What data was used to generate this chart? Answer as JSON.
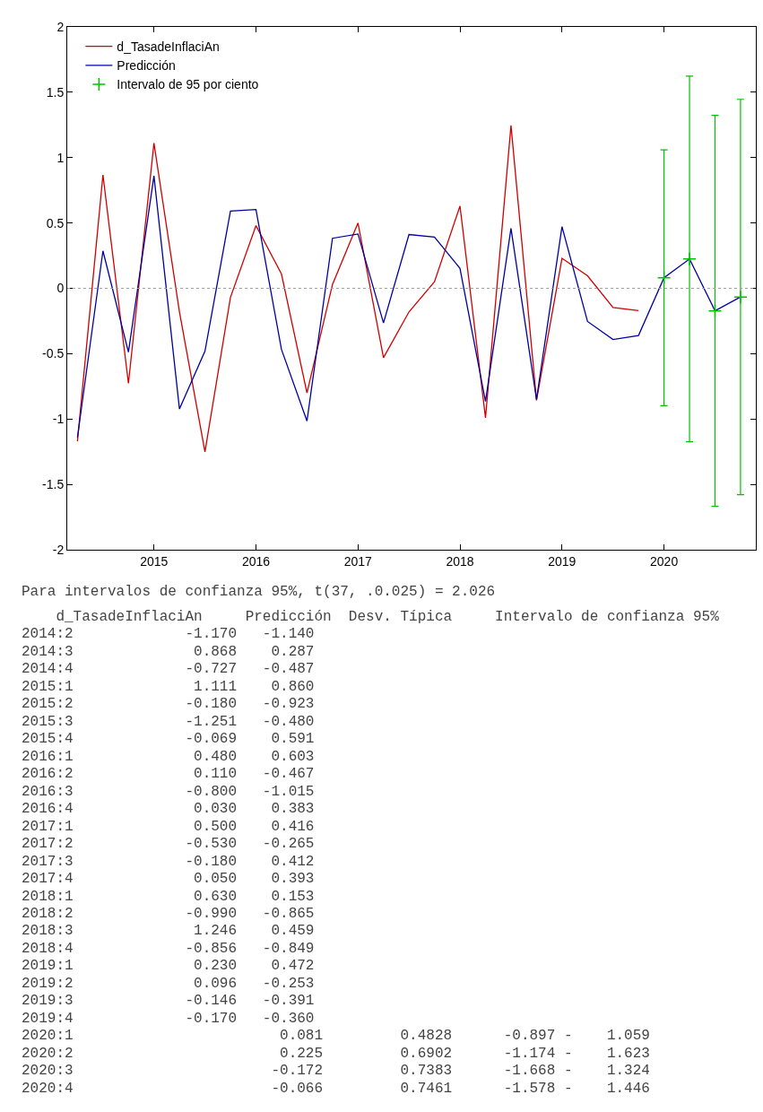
{
  "chart_data": {
    "type": "line",
    "x": [
      2014.25,
      2014.5,
      2014.75,
      2015,
      2015.25,
      2015.5,
      2015.75,
      2016,
      2016.25,
      2016.5,
      2016.75,
      2017,
      2017.25,
      2017.5,
      2017.75,
      2018,
      2018.25,
      2018.5,
      2018.75,
      2019,
      2019.25,
      2019.5,
      2019.75,
      2020,
      2020.25,
      2020.5,
      2020.75
    ],
    "series": [
      {
        "name": "d_TasadeInflaciAn",
        "color": "#d00000",
        "values": [
          -1.17,
          0.868,
          -0.727,
          1.111,
          -0.18,
          -1.251,
          -0.069,
          0.48,
          0.11,
          -0.8,
          0.03,
          0.5,
          -0.53,
          -0.18,
          0.05,
          0.63,
          -0.99,
          1.246,
          -0.856,
          0.23,
          0.096,
          -0.146,
          -0.17,
          null,
          null,
          null,
          null
        ]
      },
      {
        "name": "Predicción",
        "color": "#0000a0",
        "values": [
          -1.14,
          0.287,
          -0.487,
          0.86,
          -0.923,
          -0.48,
          0.591,
          0.603,
          -0.467,
          -1.015,
          0.383,
          0.416,
          -0.265,
          0.412,
          0.393,
          0.153,
          -0.865,
          0.459,
          -0.849,
          0.472,
          -0.253,
          -0.391,
          -0.36,
          0.081,
          0.225,
          -0.172,
          -0.066
        ]
      },
      {
        "name": "Intervalo de 95 por ciento",
        "type": "scatter",
        "color": "#00c000",
        "marker": "cross",
        "x": [
          2020,
          2020.25,
          2020.5,
          2020.75
        ],
        "values": [
          0.081,
          0.225,
          -0.172,
          -0.066
        ],
        "errors": [
          [
            -0.897,
            1.059
          ],
          [
            -1.174,
            1.623
          ],
          [
            -1.668,
            1.324
          ],
          [
            -1.578,
            1.446
          ]
        ]
      }
    ],
    "xlim": [
      2014.15,
      2020.9
    ],
    "xticks": [
      2015,
      2016,
      2017,
      2018,
      2019,
      2020
    ],
    "ylim": [
      -2,
      2
    ],
    "yticks": [
      -2,
      -1.5,
      -1,
      -0.5,
      0,
      0.5,
      1,
      1.5,
      2
    ],
    "legend": "top left",
    "marker": "none",
    "line_style": "solid",
    "ref_lines": [
      {
        "axis": "y",
        "value": 0,
        "color": "#a0a0a0",
        "line_style": "dotted"
      }
    ],
    "annotations": [
      "Para intervalos de confianza 95%, t(37, .0.025) = 2.026",
      "    d_TasadeInflaciAn     Predicción  Desv. Típica     Intervalo de confianza 95%",
      "2014:2             -1.170   -1.140",
      "2014:3              0.868    0.287",
      "2014:4             -0.727   -0.487",
      "2015:1              1.111    0.860",
      "2015:2             -0.180   -0.923",
      "2015:3             -1.251   -0.480",
      "2015:4             -0.069    0.591",
      "2016:1              0.480    0.603",
      "2016:2              0.110   -0.467",
      "2016:3             -0.800   -1.015",
      "2016:4              0.030    0.383",
      "2017:1              0.500    0.416",
      "2017:2             -0.530   -0.265",
      "2017:3             -0.180    0.412",
      "2017:4              0.050    0.393",
      "2018:1              0.630    0.153",
      "2018:2             -0.990   -0.865",
      "2018:3              1.246    0.459",
      "2018:4             -0.856   -0.849",
      "2019:1              0.230    0.472",
      "2019:2              0.096   -0.253",
      "2019:3             -0.146   -0.391",
      "2019:4             -0.170   -0.360",
      "2020:1                        0.081         0.4828      -0.897 -    1.059",
      "2020:2                        0.225         0.6902      -1.174 -    1.623",
      "2020:3                       -0.172         0.7383      -1.668 -    1.324",
      "2020:4                       -0.066         0.7461      -1.578 -    1.446"
    ]
  }
}
